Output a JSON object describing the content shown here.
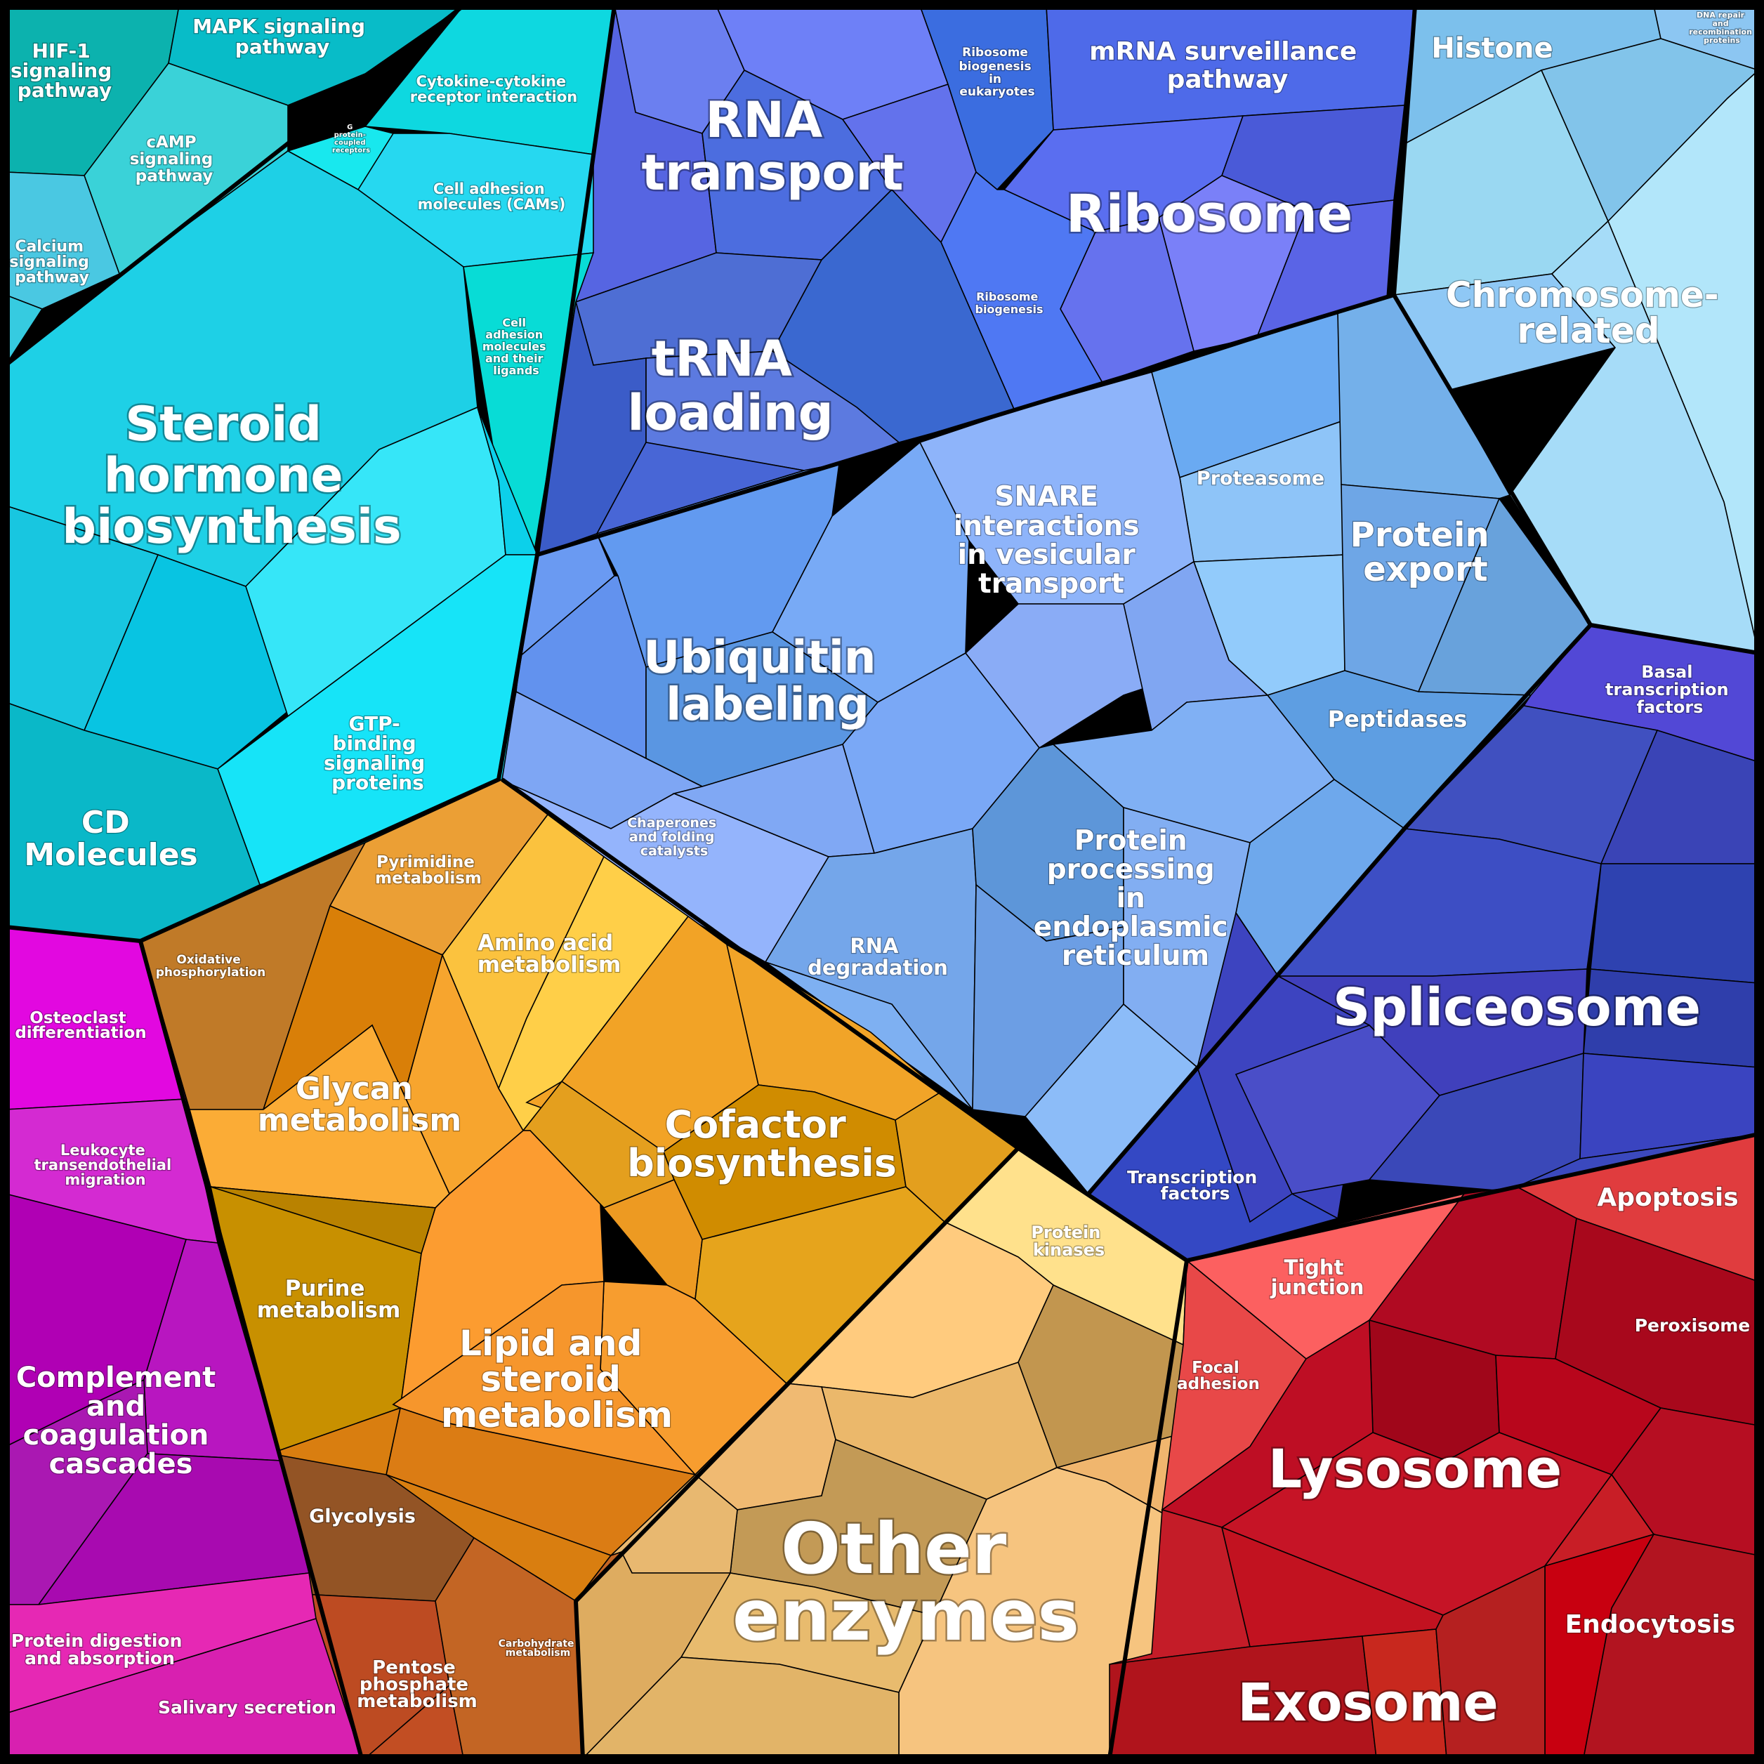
{
  "labels": {
    "rna_transport": [
      "RNA",
      "transport"
    ],
    "ribosome": "Ribosome",
    "ribosome_biogenesis_eukaryotes": [
      "Ribosome",
      "biogenesis",
      "in",
      "eukaryotes"
    ],
    "mrna_surveillance": [
      "mRNA surveillance",
      "pathway"
    ],
    "ribosome_biogenesis": [
      "Ribosome",
      "biogenesis"
    ],
    "trna_loading": [
      "tRNA",
      "loading"
    ],
    "histone": "Histone",
    "dna_repair": [
      "DNA repair",
      "and",
      "recombination",
      "proteins"
    ],
    "chromosome_related": [
      "Chromosome-",
      "related"
    ],
    "proteasome": "Proteasome",
    "protein_export": [
      "Protein",
      "export"
    ],
    "snare": [
      "SNARE",
      "interactions",
      "in vesicular",
      "transport"
    ],
    "ubiquitin": [
      "Ubiquitin",
      "labeling"
    ],
    "chaperones": [
      "Chaperones",
      "and folding",
      "catalysts"
    ],
    "rna_degradation": [
      "RNA",
      "degradation"
    ],
    "protein_processing_er": [
      "Protein",
      "processing",
      "in",
      "endoplasmic",
      "reticulum"
    ],
    "peptidases": "Peptidases",
    "basal_transcription": [
      "Basal",
      "transcription",
      "factors"
    ],
    "spliceosome": "Spliceosome",
    "transcription_factors": [
      "Transcription",
      "factors"
    ],
    "hif1": [
      "HIF-1",
      "signaling",
      "pathway"
    ],
    "mapk": [
      "MAPK signaling",
      "pathway"
    ],
    "camp": [
      "cAMP",
      "signaling",
      "pathway"
    ],
    "cytokine": [
      "Cytokine-cytokine",
      "receptor interaction"
    ],
    "gpcr": [
      "G",
      "protein-",
      "coupled",
      "receptors"
    ],
    "cams": [
      "Cell adhesion",
      "molecules (CAMs)"
    ],
    "calcium": [
      "Calcium",
      "signaling",
      "pathway"
    ],
    "cell_adhesion_ligands": [
      "Cell",
      "adhesion",
      "molecules",
      "and their",
      "ligands"
    ],
    "steroid_hormone": [
      "Steroid",
      "hormone",
      "biosynthesis"
    ],
    "gtp_binding": [
      "GTP-",
      "binding",
      "signaling",
      "proteins"
    ],
    "cd_molecules": [
      "CD",
      "Molecules"
    ],
    "pyrimidine": [
      "Pyrimidine",
      "metabolism"
    ],
    "oxidative_phosphorylation": [
      "Oxidative",
      "phosphorylation"
    ],
    "amino_acid": [
      "Amino acid",
      "metabolism"
    ],
    "glycan": [
      "Glycan",
      "metabolism"
    ],
    "cofactor": [
      "Cofactor",
      "biosynthesis"
    ],
    "purine": [
      "Purine",
      "metabolism"
    ],
    "lipid_steroid": [
      "Lipid and",
      "steroid",
      "metabolism"
    ],
    "glycolysis": "Glycolysis",
    "pentose_phosphate": [
      "Pentose",
      "phosphate",
      "metabolism"
    ],
    "carbohydrate": [
      "Carbohydrate",
      "metabolism"
    ],
    "protein_kinases": [
      "Protein",
      "kinases"
    ],
    "other_enzymes": [
      "Other",
      "enzymes"
    ],
    "osteoclast": [
      "Osteoclast",
      "differentiation"
    ],
    "leukocyte": [
      "Leukocyte",
      "transendothelial",
      "migration"
    ],
    "complement": [
      "Complement",
      "and",
      "coagulation",
      "cascades"
    ],
    "protein_digestion": [
      "Protein digestion",
      "and absorption"
    ],
    "salivary": "Salivary secretion",
    "tight_junction": [
      "Tight",
      "junction"
    ],
    "apoptosis": "Apoptosis",
    "focal_adhesion": [
      "Focal",
      "adhesion"
    ],
    "peroxisome": "Peroxisome",
    "lysosome": "Lysosome",
    "endocytosis": "Endocytosis",
    "exosome": "Exosome"
  },
  "groups": [
    {
      "name": "genetic-information-processing",
      "color": "#5a71e6"
    },
    {
      "name": "chromosome",
      "color": "#8fd0f2"
    },
    {
      "name": "protein-processing",
      "color": "#7fa8f2"
    },
    {
      "name": "transcription",
      "color": "#3f4fc0"
    },
    {
      "name": "signaling",
      "color": "#16d6ea"
    },
    {
      "name": "metabolism",
      "color": "#f3a536"
    },
    {
      "name": "other-enzymes",
      "color": "#eebd74"
    },
    {
      "name": "immune",
      "color": "#c220c0"
    },
    {
      "name": "cellular-processes",
      "color": "#c01020"
    }
  ]
}
